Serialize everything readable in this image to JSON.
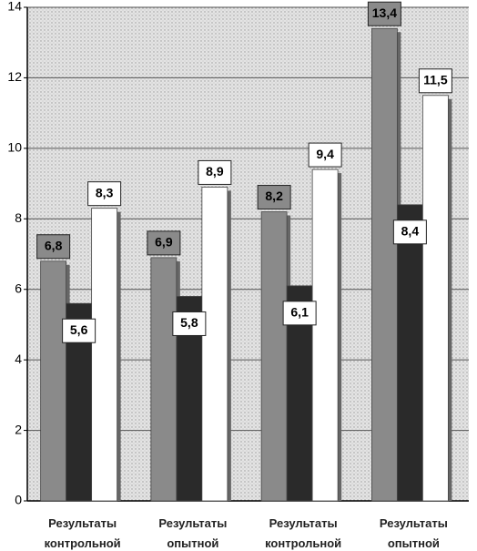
{
  "chart_data": {
    "type": "bar",
    "categories": [
      "Результаты контрольной",
      "Результаты опытной",
      "Результаты контрольной",
      "Результаты опытной"
    ],
    "series": [
      {
        "color": "#8a8a8a",
        "values": [
          6.8,
          6.9,
          8.2,
          13.4
        ],
        "value_labels": [
          "6,8",
          "6,9",
          "8,2",
          "13,4"
        ]
      },
      {
        "color": "#2a2a2a",
        "values": [
          5.6,
          5.8,
          6.1,
          8.4
        ],
        "value_labels": [
          "5,6",
          "5,8",
          "6,1",
          "8,4"
        ]
      },
      {
        "color": "#ffffff",
        "values": [
          8.3,
          8.9,
          9.4,
          11.5
        ],
        "value_labels": [
          "8,3",
          "8,9",
          "9,4",
          "11,5"
        ]
      }
    ],
    "ylim": [
      0,
      14
    ],
    "yticks": [
      0,
      2,
      4,
      6,
      8,
      10,
      12,
      14
    ],
    "grid": true
  }
}
